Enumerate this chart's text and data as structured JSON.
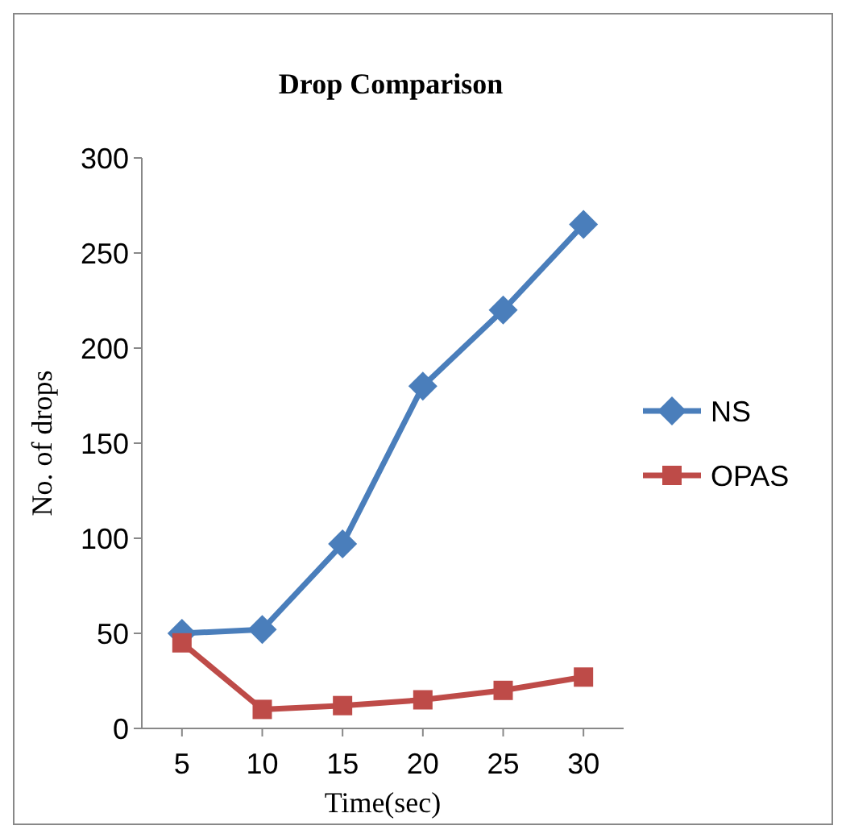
{
  "chart_data": {
    "type": "line",
    "title": "Drop Comparison",
    "xlabel": "Time(sec)",
    "ylabel": "No. of drops",
    "categories": [
      "5",
      "10",
      "15",
      "20",
      "25",
      "30"
    ],
    "series": [
      {
        "name": "NS",
        "color": "#4a7ebb",
        "marker": "diamond",
        "values": [
          50,
          52,
          97,
          180,
          220,
          265
        ]
      },
      {
        "name": "OPAS",
        "color": "#be4b48",
        "marker": "square",
        "values": [
          45,
          10,
          12,
          15,
          20,
          27
        ]
      }
    ],
    "ylim": [
      0,
      300
    ],
    "yticks": [
      0,
      50,
      100,
      150,
      200,
      250,
      300
    ],
    "grid": false,
    "legend": "right"
  }
}
